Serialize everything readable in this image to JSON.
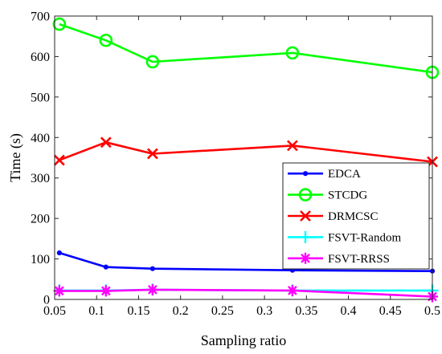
{
  "chart_data": {
    "type": "line",
    "xlabel": "Sampling ratio",
    "ylabel": "Time (s)",
    "xlim": [
      0.05,
      0.5
    ],
    "ylim": [
      0,
      700
    ],
    "xticks": [
      "0.05",
      "0.1",
      "0.15",
      "0.2",
      "0.25",
      "0.3",
      "0.35",
      "0.4",
      "0.45",
      "0.5"
    ],
    "yticks": [
      "0",
      "100",
      "200",
      "300",
      "400",
      "500",
      "600",
      "700"
    ],
    "grid": false,
    "legend_position": "right-center",
    "x": [
      0.0556,
      0.1111,
      0.1667,
      0.3333,
      0.5
    ],
    "series": [
      {
        "name": "EDCA",
        "color": "#0000ff",
        "marker": "dot",
        "values": [
          115,
          80,
          76,
          72,
          70
        ]
      },
      {
        "name": "STCDG",
        "color": "#00ff00",
        "marker": "circle",
        "values": [
          680,
          640,
          587,
          609,
          561
        ]
      },
      {
        "name": "DRMCSC",
        "color": "#ff0000",
        "marker": "x",
        "values": [
          344,
          388,
          360,
          380,
          340
        ]
      },
      {
        "name": "FSVT-Random",
        "color": "#00ffff",
        "marker": "plus",
        "values": [
          22,
          22,
          24,
          22,
          22
        ]
      },
      {
        "name": "FSVT-RRSS",
        "color": "#ff00ff",
        "marker": "star",
        "values": [
          21,
          21,
          24,
          22,
          7
        ]
      }
    ]
  }
}
